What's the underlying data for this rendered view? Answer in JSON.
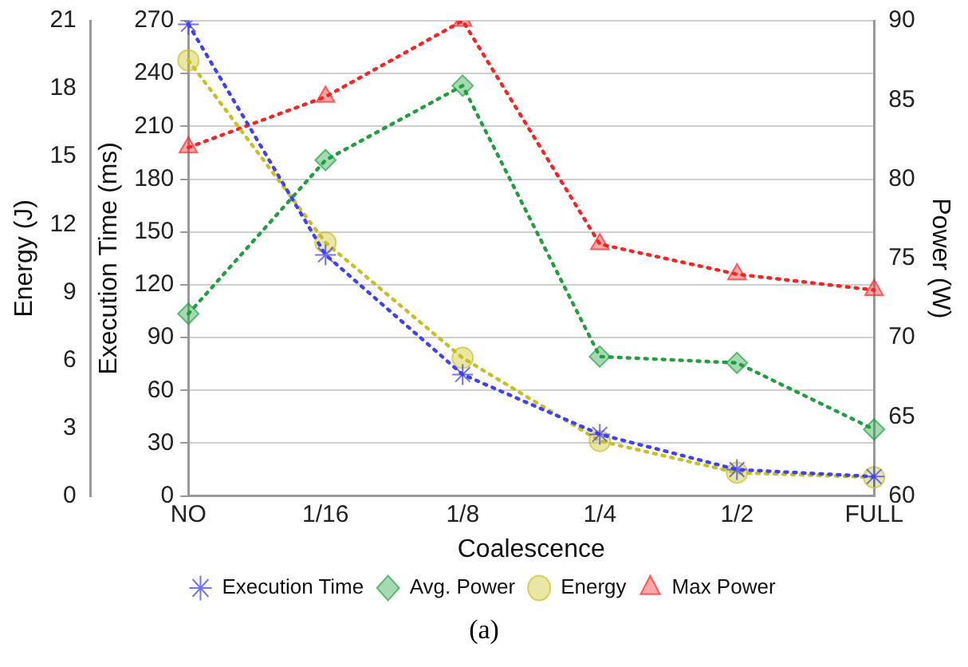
{
  "chart_data": {
    "type": "line",
    "xlabel": "Coalescence",
    "ylabel": "Execution Time (ms)",
    "y2label": "Power (W)",
    "y3label": "Energy (J)",
    "categories": [
      "NO",
      "1/16",
      "1/8",
      "1/4",
      "1/2",
      "FULL"
    ],
    "series": [
      {
        "name": "Execution Time",
        "color": "#3f3fff",
        "marker": "cross",
        "values": [
          268,
          137,
          69,
          35,
          15,
          11
        ]
      },
      {
        "name": "Avg. Power",
        "color": "#1f9f3f",
        "marker": "diamond",
        "axis": "y2",
        "values": [
          71.5,
          81.2,
          85.9,
          68.8,
          68.4,
          64.2
        ]
      },
      {
        "name": "Energy",
        "color": "#c8c020",
        "marker": "circle",
        "axis": "y3",
        "values": [
          19.25,
          11.2,
          6.1,
          2.43,
          1.03,
          0.82
        ]
      },
      {
        "name": "Max Power",
        "color": "#ff2020",
        "marker": "triangle",
        "axis": "y2",
        "values": [
          82.0,
          85.2,
          90,
          75.9,
          74.0,
          73.0
        ]
      }
    ],
    "ylim": [
      0,
      270
    ],
    "yticks": [
      0,
      30,
      60,
      90,
      120,
      150,
      180,
      210,
      240,
      270
    ],
    "y2lim": [
      60,
      90
    ],
    "y2ticks": [
      60,
      65,
      70,
      75,
      80,
      85,
      90
    ],
    "y3lim": [
      0,
      21
    ],
    "y3ticks": [
      0,
      3,
      6,
      9,
      12,
      15,
      18,
      21
    ],
    "grid": "y",
    "legend": "bottom",
    "line_style": "dotted",
    "annotations": [
      "(a)"
    ]
  }
}
